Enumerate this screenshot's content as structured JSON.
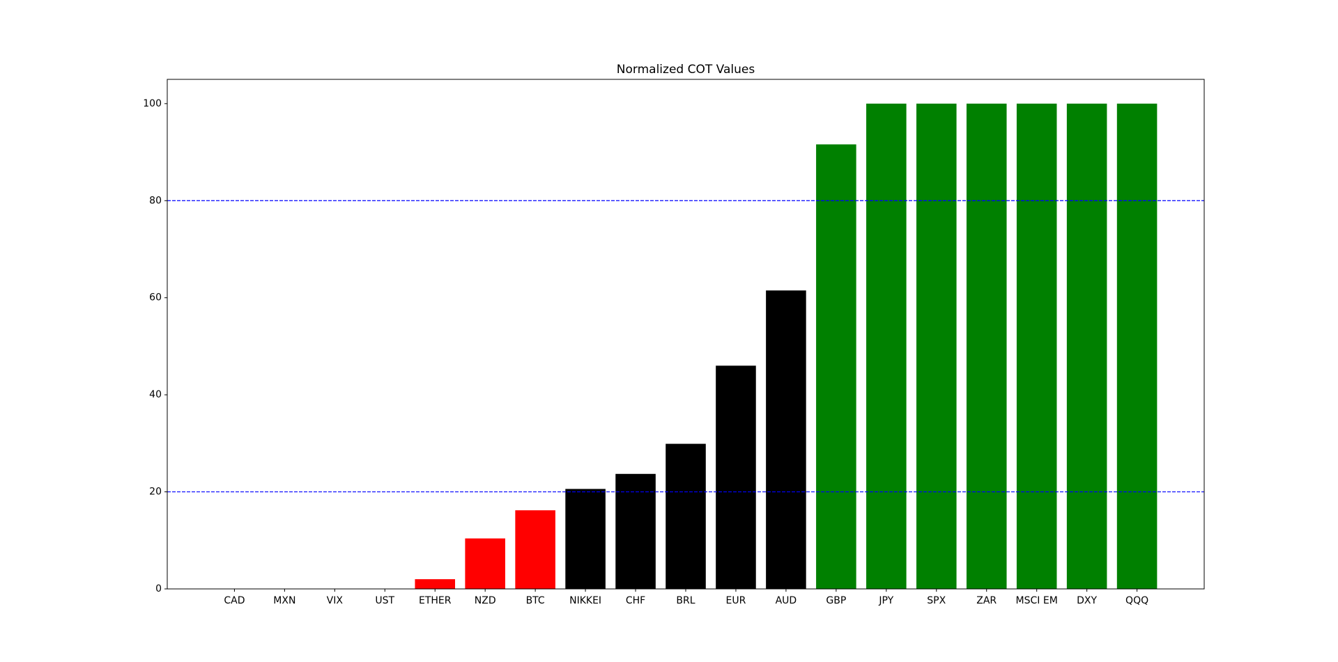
{
  "chart_data": {
    "type": "bar",
    "title": "Normalized COT Values",
    "categories": [
      "CAD",
      "MXN",
      "VIX",
      "UST",
      "ETHER",
      "NZD",
      "BTC",
      "NIKKEI",
      "CHF",
      "BRL",
      "EUR",
      "AUD",
      "GBP",
      "JPY",
      "SPX",
      "ZAR",
      "MSCI EM",
      "DXY",
      "QQQ"
    ],
    "values": [
      0,
      0,
      0,
      0,
      2,
      10.4,
      16.2,
      20.6,
      23.7,
      29.9,
      46,
      61.5,
      91.6,
      100,
      100,
      100,
      100,
      100,
      100
    ],
    "colors": [
      "#ff0000",
      "#ff0000",
      "#ff0000",
      "#ff0000",
      "#ff0000",
      "#ff0000",
      "#ff0000",
      "#000000",
      "#000000",
      "#000000",
      "#000000",
      "#000000",
      "#008000",
      "#008000",
      "#008000",
      "#008000",
      "#008000",
      "#008000",
      "#008000"
    ],
    "ylim": [
      0,
      105
    ],
    "yticks": [
      0,
      20,
      40,
      60,
      80,
      100
    ],
    "hlines": [
      20,
      80
    ],
    "hline_color": "#0000ff",
    "grid": false
  }
}
